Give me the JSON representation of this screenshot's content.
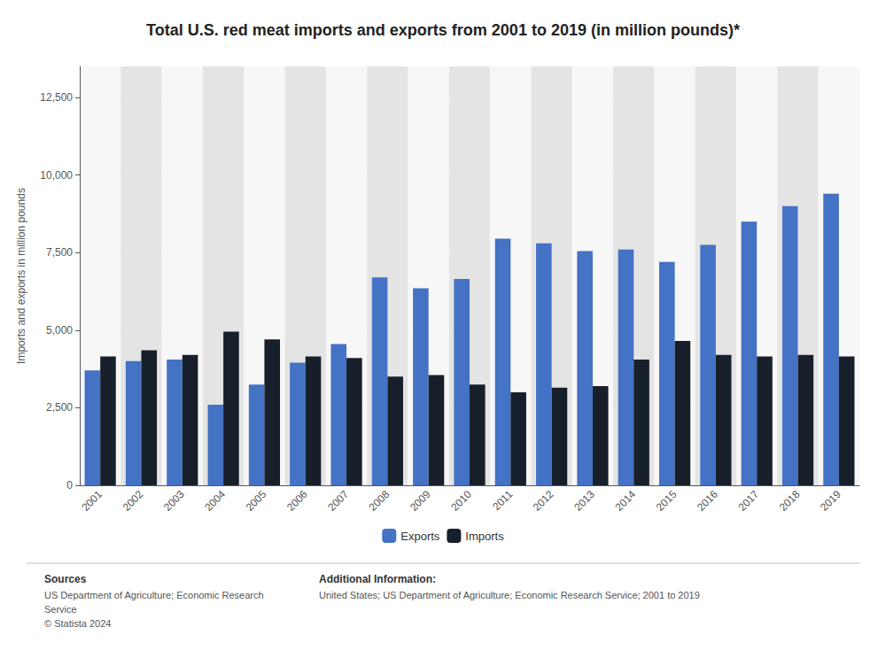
{
  "chart_data": {
    "type": "bar",
    "title": "Total U.S. red meat imports and exports from 2001 to 2019 (in million pounds)*",
    "y_label": "Imports and exports in million pounds",
    "categories": [
      "2001",
      "2002",
      "2003",
      "2004",
      "2005",
      "2006",
      "2007",
      "2008",
      "2009",
      "2010",
      "2011",
      "2012",
      "2013",
      "2014",
      "2015",
      "2016",
      "2017",
      "2018",
      "2019"
    ],
    "series": [
      {
        "name": "Exports",
        "color": "#4472C4",
        "values": [
          3700,
          4000,
          4050,
          2600,
          3250,
          3950,
          4550,
          6700,
          6350,
          6650,
          7950,
          7800,
          7550,
          7600,
          7200,
          7750,
          8500,
          9000,
          9400
        ]
      },
      {
        "name": "Imports",
        "color": "#17202A",
        "values": [
          4150,
          4350,
          4200,
          4950,
          4700,
          4150,
          4100,
          3500,
          3550,
          3250,
          3000,
          3150,
          3200,
          4050,
          4650,
          4200,
          4150,
          4200,
          4150
        ]
      }
    ],
    "ylim": [
      0,
      13500
    ],
    "yticks": [
      0,
      {
        "value": 2500,
        "label": "2,500"
      },
      {
        "value": 5000,
        "label": "5,000"
      },
      {
        "value": 7500,
        "label": "7,500"
      },
      {
        "value": 10000,
        "label": "10,000"
      },
      {
        "value": 12500,
        "label": "12,500"
      }
    ],
    "grid": true,
    "legend": "bottom",
    "annotations": [
      "Sources",
      "US Department of Agriculture; Economic Research\nService\n© Statista 2024",
      "Additional Information:",
      "United States; US Department of Agriculture; Economic Research Service; 2001 to 2019"
    ]
  }
}
